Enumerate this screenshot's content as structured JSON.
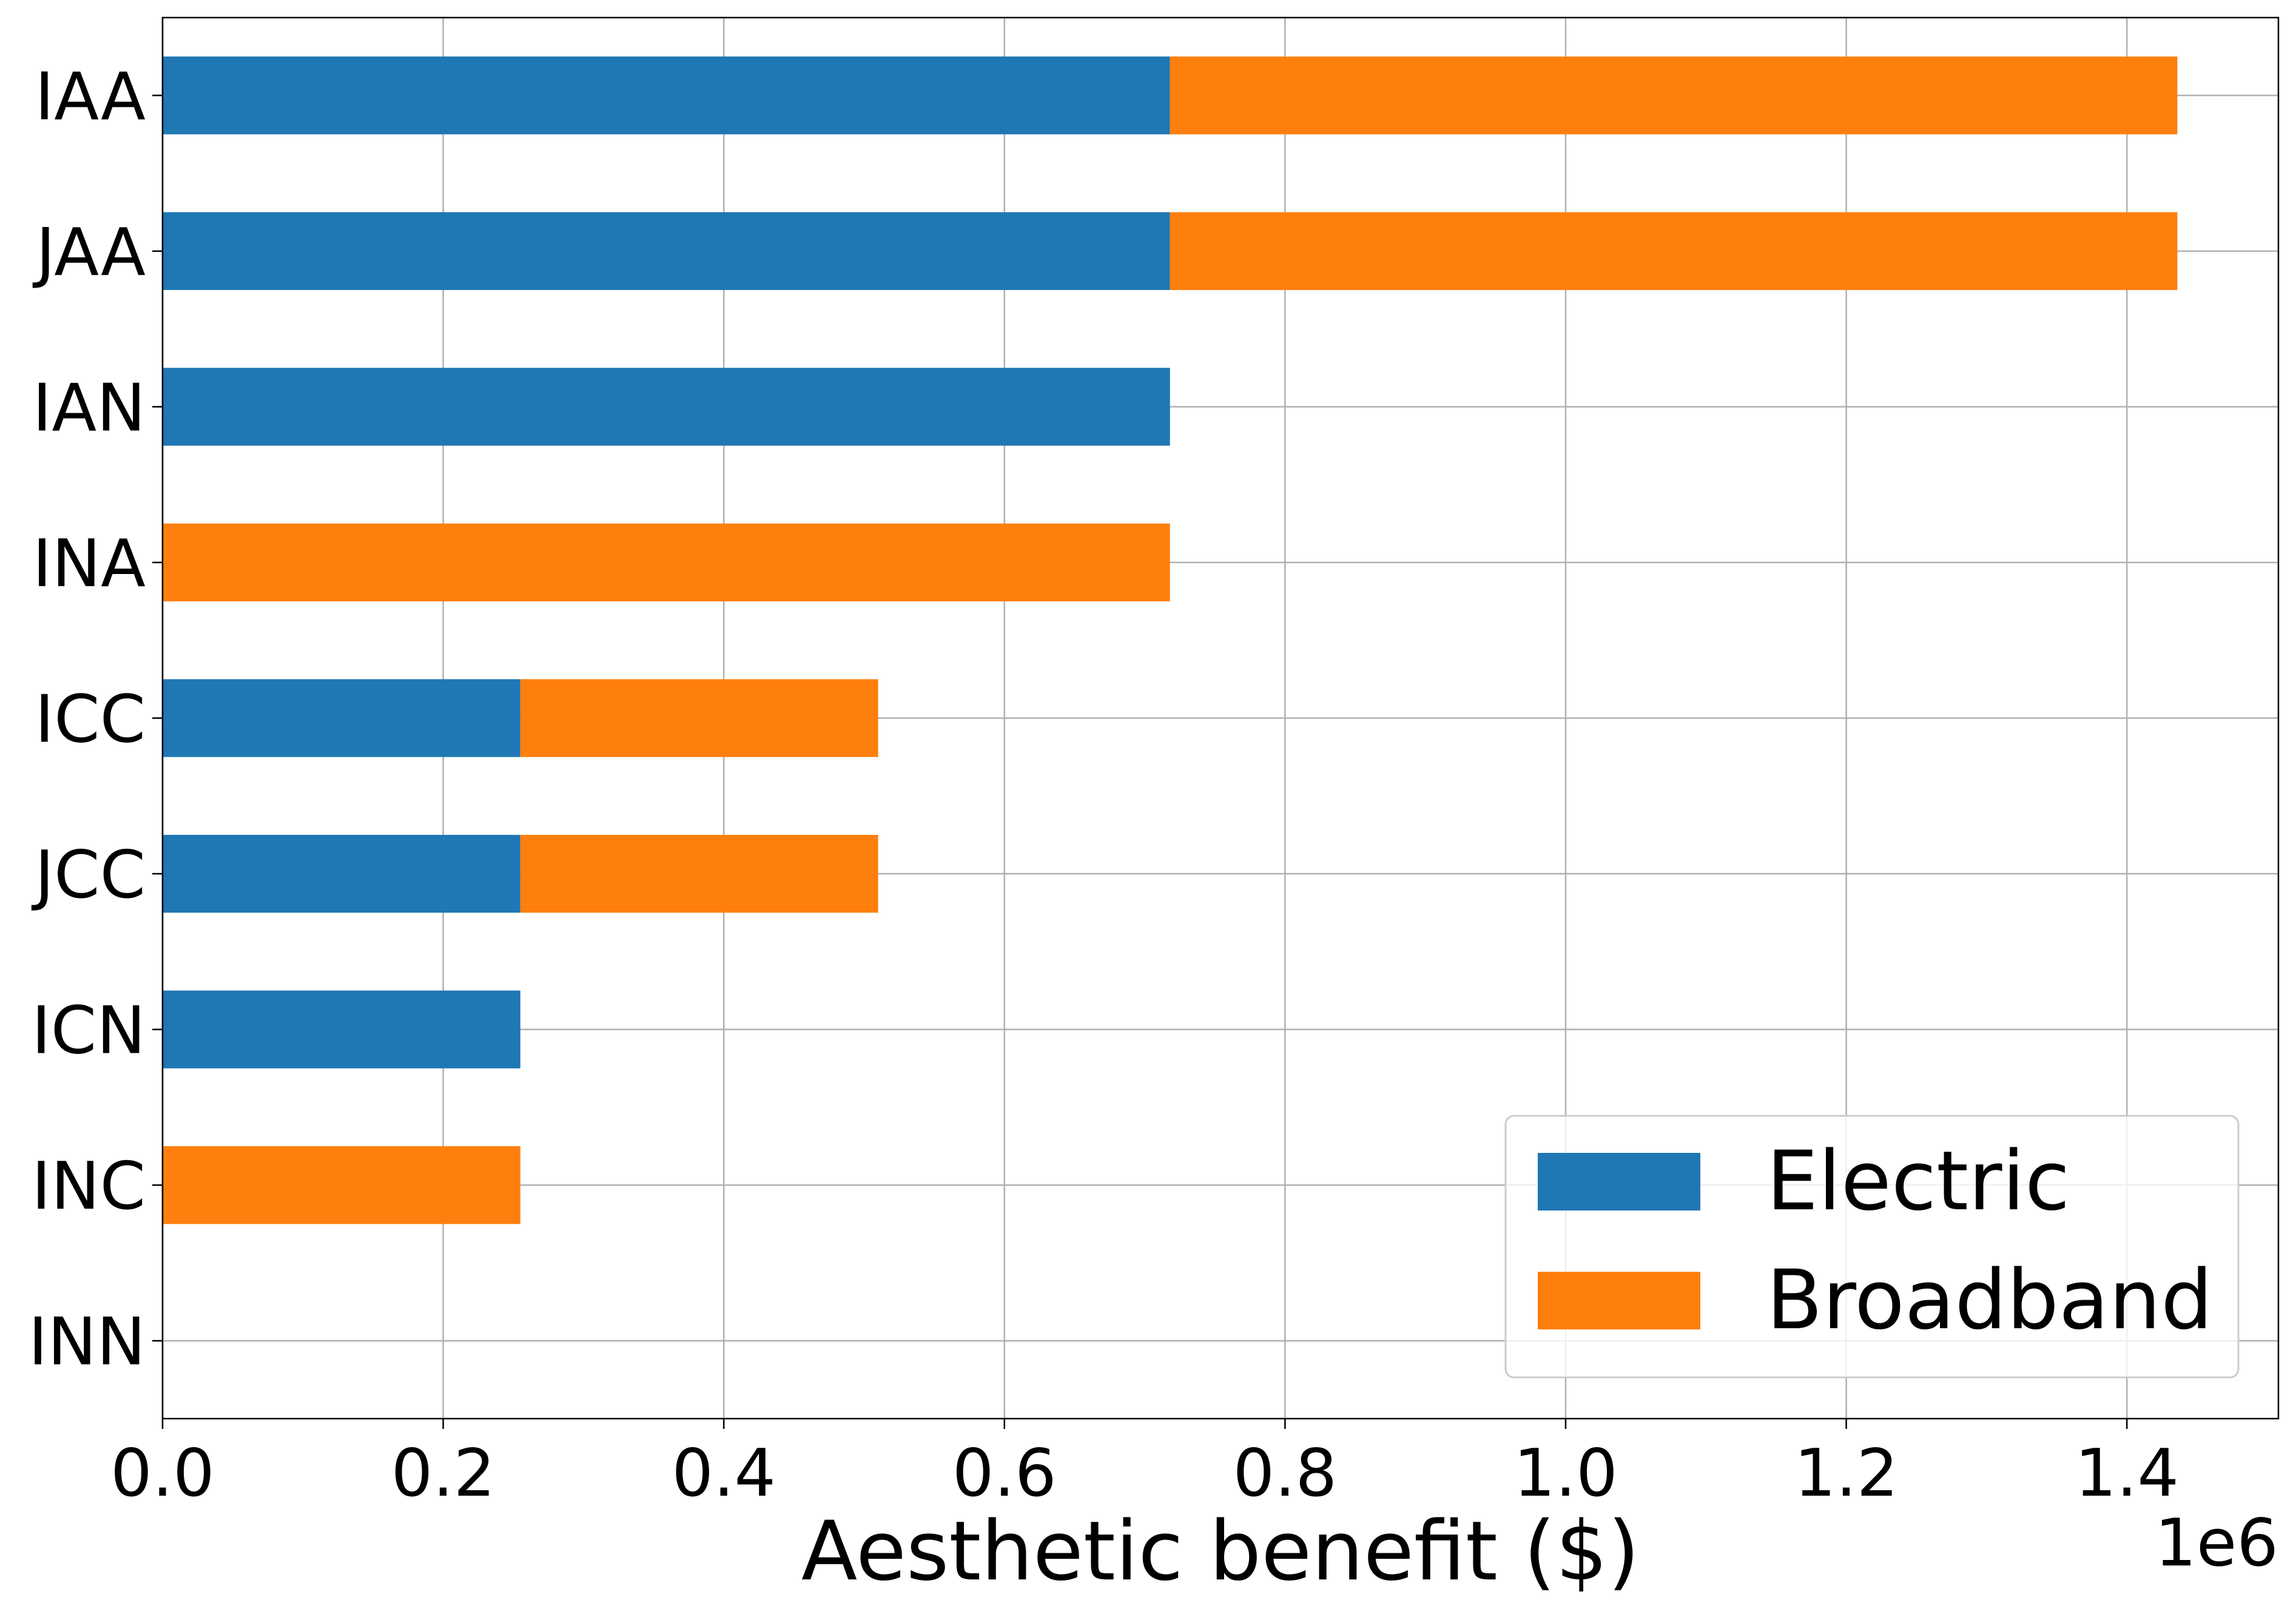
{
  "chart_data": {
    "type": "bar",
    "orientation": "horizontal",
    "stacked": true,
    "categories": [
      "IAA",
      "JAA",
      "IAN",
      "INA",
      "ICC",
      "JCC",
      "ICN",
      "INC",
      "INN"
    ],
    "series": [
      {
        "name": "Electric",
        "color": "#1f77b4",
        "values": [
          718000,
          718000,
          718000,
          0,
          255000,
          255000,
          255000,
          0,
          0
        ]
      },
      {
        "name": "Broadband",
        "color": "#ff7f0e",
        "values": [
          718000,
          718000,
          0,
          718000,
          255000,
          255000,
          0,
          255000,
          0
        ]
      }
    ],
    "xlabel": "Aesthetic benefit ($)",
    "ylabel": "",
    "xlim": [
      0,
      1508000
    ],
    "x_ticks": [
      0,
      200000,
      400000,
      600000,
      800000,
      1000000,
      1200000,
      1400000
    ],
    "x_tick_labels": [
      "0.0",
      "0.2",
      "0.4",
      "0.6",
      "0.8",
      "1.0",
      "1.2",
      "1.4"
    ],
    "offset_label": "1e6",
    "grid": true,
    "legend_position": "lower-right"
  }
}
